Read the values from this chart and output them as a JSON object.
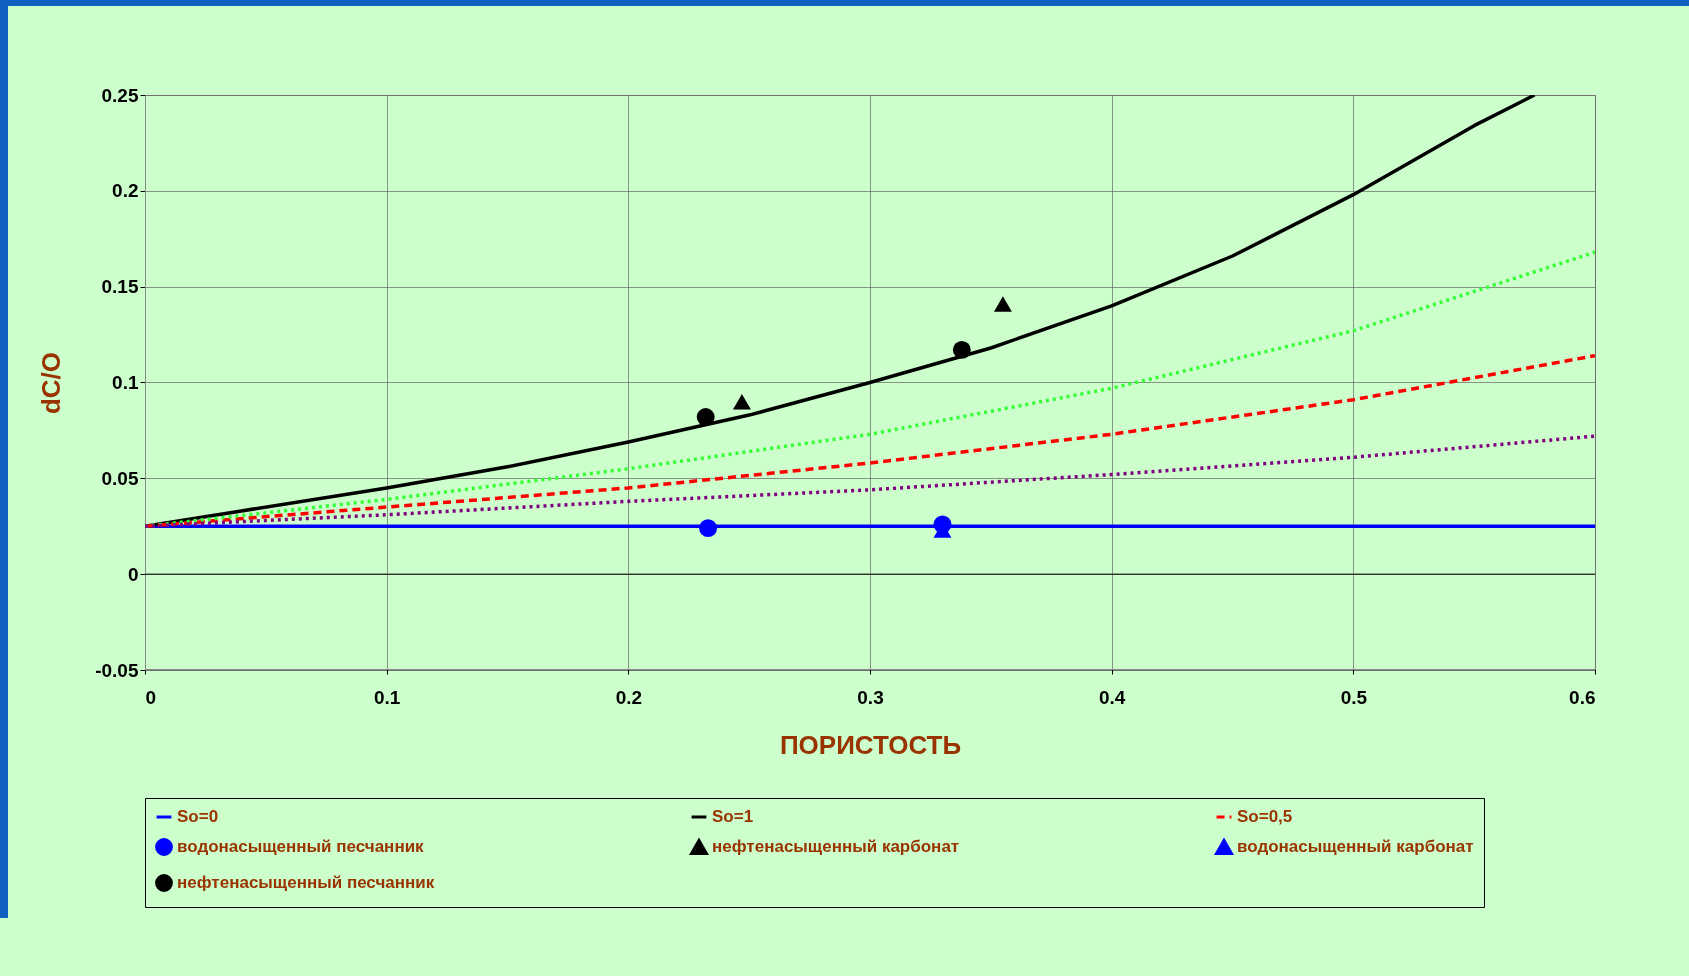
{
  "chart_data": {
    "type": "line",
    "xlabel": "ПОРИСТОСТЬ",
    "ylabel": "dC/O",
    "xlim": [
      0,
      0.6
    ],
    "xticks": [
      0,
      0.1,
      0.2,
      0.3,
      0.4,
      0.5,
      0.6
    ],
    "ylim": [
      -0.05,
      0.25
    ],
    "yticks": [
      -0.05,
      0,
      0.05,
      0.1,
      0.15,
      0.2,
      0.25
    ],
    "grid": true,
    "legend": "bottom",
    "series": [
      {
        "name": "So=0",
        "color": "#0000ff",
        "line_style": "solid",
        "marker": "none",
        "x": [
          0,
          0.6
        ],
        "values": [
          0.025,
          0.025
        ]
      },
      {
        "name": "So=1",
        "color": "#000000",
        "line_style": "solid",
        "marker": "none",
        "x": [
          0,
          0.1,
          0.15,
          0.2,
          0.25,
          0.3,
          0.35,
          0.4,
          0.45,
          0.5,
          0.55,
          0.575
        ],
        "values": [
          0.025,
          0.045,
          0.056,
          0.069,
          0.083,
          0.1,
          0.118,
          0.14,
          0.166,
          0.198,
          0.234,
          0.25
        ]
      },
      {
        "name": "So=0,5",
        "color": "#ff0000",
        "line_style": "dashed",
        "marker": "none",
        "x": [
          0,
          0.1,
          0.2,
          0.3,
          0.4,
          0.5,
          0.6
        ],
        "values": [
          0.025,
          0.035,
          0.045,
          0.058,
          0.073,
          0.091,
          0.114
        ]
      },
      {
        "name": "водонасыщенный песчанник",
        "type": "scatter",
        "color": "#0000ff",
        "marker": "circle",
        "x": [
          0.233,
          0.33
        ],
        "values": [
          0.024,
          0.026
        ]
      },
      {
        "name": "нефтенасыщенный карбонат",
        "type": "scatter",
        "color": "#000000",
        "marker": "triangle",
        "x": [
          0.247,
          0.355
        ],
        "values": [
          0.09,
          0.141
        ]
      },
      {
        "name": "водонасыщенный карбонат",
        "type": "scatter",
        "color": "#0000ff",
        "marker": "triangle",
        "x": [
          0.33
        ],
        "values": [
          0.023
        ]
      },
      {
        "name": "нефтенасыщенный песчанник",
        "type": "scatter",
        "color": "#000000",
        "marker": "circle",
        "x": [
          0.232,
          0.338
        ],
        "values": [
          0.082,
          0.117
        ]
      },
      {
        "color": "#33ff33",
        "line_style": "dotted",
        "marker": "none",
        "x": [
          0,
          0.1,
          0.2,
          0.3,
          0.4,
          0.5,
          0.6
        ],
        "values": [
          0.025,
          0.039,
          0.055,
          0.073,
          0.097,
          0.127,
          0.168
        ]
      },
      {
        "color": "#800080",
        "line_style": "dotted",
        "marker": "none",
        "x": [
          0,
          0.1,
          0.2,
          0.3,
          0.4,
          0.5,
          0.6
        ],
        "values": [
          0.025,
          0.031,
          0.038,
          0.044,
          0.052,
          0.061,
          0.072
        ]
      }
    ]
  }
}
